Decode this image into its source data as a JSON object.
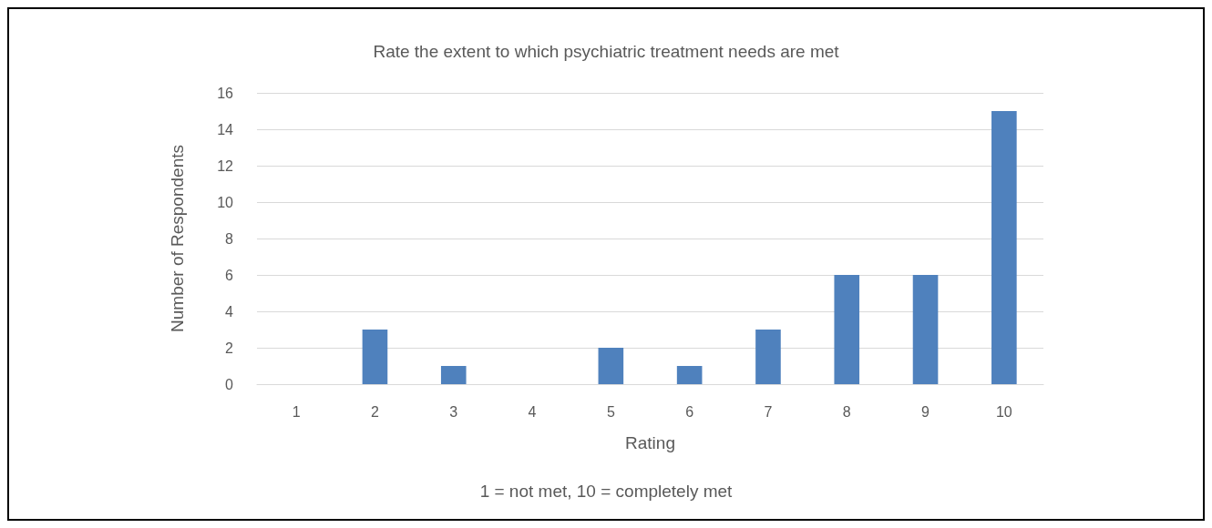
{
  "chart_data": {
    "type": "bar",
    "title": "Rate the extent to which psychiatric treatment needs are met",
    "xlabel": "Rating",
    "ylabel": "Number of Respondents",
    "annotations": [
      "1 = not met, 10 = completely met"
    ],
    "categories": [
      "1",
      "2",
      "3",
      "4",
      "5",
      "6",
      "7",
      "8",
      "9",
      "10"
    ],
    "values": [
      0,
      3,
      1,
      0,
      2,
      1,
      3,
      6,
      6,
      15
    ],
    "color": "#4f81bd",
    "ylim": [
      0,
      16
    ],
    "yticks": [
      0,
      2,
      4,
      6,
      8,
      10,
      12,
      14,
      16
    ],
    "grid": "y"
  }
}
